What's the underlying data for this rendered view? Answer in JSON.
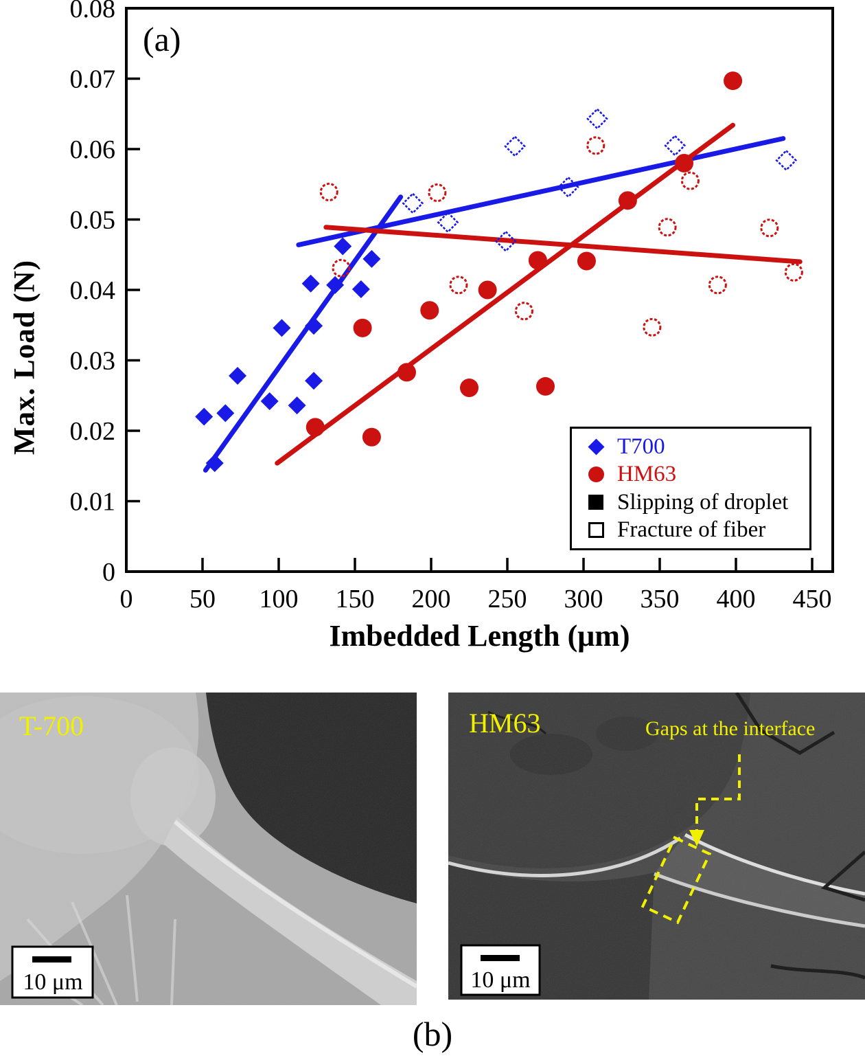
{
  "labels": {
    "panel_a": "(a)",
    "panel_b": "(b)"
  },
  "colors": {
    "t700_blue": "#1A1AE6",
    "hm63_red": "#CC1111",
    "annotation_yellow": "#F0F000",
    "axis_black": "#000000"
  },
  "chart_data": {
    "type": "scatter",
    "title": "",
    "xlabel": "Imbedded Length (μm)",
    "ylabel": "Max. Load (N)",
    "xlim": [
      0,
      450
    ],
    "ylim": [
      0,
      0.08
    ],
    "grid": false,
    "xticks": [
      0,
      50,
      100,
      150,
      200,
      250,
      300,
      350,
      400,
      450
    ],
    "xtick_labels": [
      "0",
      "50",
      "100",
      "150",
      "200",
      "250",
      "300",
      "350",
      "400",
      "450"
    ],
    "yticks": [
      0,
      0.01,
      0.02,
      0.03,
      0.04,
      0.05,
      0.06,
      0.07,
      0.08
    ],
    "ytick_labels": [
      "0",
      "0.01",
      "0.02",
      "0.03",
      "0.04",
      "0.05",
      "0.06",
      "0.07",
      "0.08"
    ],
    "series": [
      {
        "key": "t700_slipping",
        "name": "T700 slipping of droplet",
        "marker": "diamond",
        "filled": true,
        "color": "#1A1AE6",
        "points": [
          [
            51,
            0.022
          ],
          [
            58,
            0.0154
          ],
          [
            65,
            0.0225
          ],
          [
            73,
            0.0278
          ],
          [
            94,
            0.0242
          ],
          [
            102,
            0.0346
          ],
          [
            112,
            0.0236
          ],
          [
            121,
            0.0409
          ],
          [
            123,
            0.0271
          ],
          [
            123,
            0.0349
          ],
          [
            137,
            0.0407
          ],
          [
            142,
            0.0462
          ],
          [
            154,
            0.0401
          ],
          [
            161,
            0.0444
          ]
        ]
      },
      {
        "key": "t700_fracture",
        "name": "T700 fracture of fiber",
        "marker": "diamond",
        "filled": false,
        "color": "#1A1AE6",
        "points": [
          [
            188,
            0.0523
          ],
          [
            211,
            0.0496
          ],
          [
            249,
            0.0469
          ],
          [
            255,
            0.0604
          ],
          [
            290,
            0.0546
          ],
          [
            309,
            0.0643
          ],
          [
            360,
            0.0605
          ],
          [
            433,
            0.0584
          ]
        ]
      },
      {
        "key": "hm63_slipping",
        "name": "HM63 slipping of droplet",
        "marker": "circle",
        "filled": true,
        "color": "#CC1111",
        "points": [
          [
            124,
            0.0205
          ],
          [
            155,
            0.0346
          ],
          [
            161,
            0.0191
          ],
          [
            184,
            0.0283
          ],
          [
            199,
            0.0371
          ],
          [
            225,
            0.0261
          ],
          [
            237,
            0.04
          ],
          [
            270,
            0.0442
          ],
          [
            275,
            0.0263
          ],
          [
            302,
            0.0441
          ],
          [
            329,
            0.0527
          ],
          [
            366,
            0.058
          ],
          [
            398,
            0.0697
          ]
        ]
      },
      {
        "key": "hm63_fracture",
        "name": "HM63 fracture of fiber",
        "marker": "circle",
        "filled": false,
        "color": "#CC1111",
        "points": [
          [
            133,
            0.0539
          ],
          [
            141,
            0.0431
          ],
          [
            204,
            0.0538
          ],
          [
            218,
            0.0407
          ],
          [
            261,
            0.037
          ],
          [
            308,
            0.0605
          ],
          [
            345,
            0.0347
          ],
          [
            355,
            0.0489
          ],
          [
            370,
            0.0555
          ],
          [
            388,
            0.0407
          ],
          [
            422,
            0.0488
          ],
          [
            438,
            0.0425
          ]
        ]
      }
    ],
    "trend_lines": [
      {
        "series": "T700 steep fit",
        "color": "#1A1AE6",
        "from": [
          52,
          0.0144
        ],
        "to": [
          180,
          0.0532
        ]
      },
      {
        "series": "T700 shallow fit",
        "color": "#1A1AE6",
        "from": [
          113,
          0.0464
        ],
        "to": [
          431,
          0.0615
        ]
      },
      {
        "series": "HM63 steep fit",
        "color": "#CC1111",
        "from": [
          99,
          0.0154
        ],
        "to": [
          398,
          0.0634
        ]
      },
      {
        "series": "HM63 shallow fit",
        "color": "#CC1111",
        "from": [
          131,
          0.0489
        ],
        "to": [
          442,
          0.044
        ]
      }
    ],
    "legend": {
      "position": "bottom-right",
      "items": [
        {
          "label": "T700",
          "marker": "diamond-filled",
          "color": "#1A1AE6"
        },
        {
          "label": "HM63",
          "marker": "circle-filled",
          "color": "#CC1111"
        },
        {
          "label": "Slipping of droplet",
          "marker": "square-filled",
          "color": "#000000"
        },
        {
          "label": "Fracture of fiber",
          "marker": "square-open",
          "color": "#000000"
        }
      ]
    }
  },
  "micrographs": {
    "left": {
      "label": "T-700",
      "scale_bar_text": "10 μm"
    },
    "right": {
      "label": "HM63",
      "scale_bar_text": "10 μm",
      "annotation": "Gaps at the interface"
    }
  }
}
